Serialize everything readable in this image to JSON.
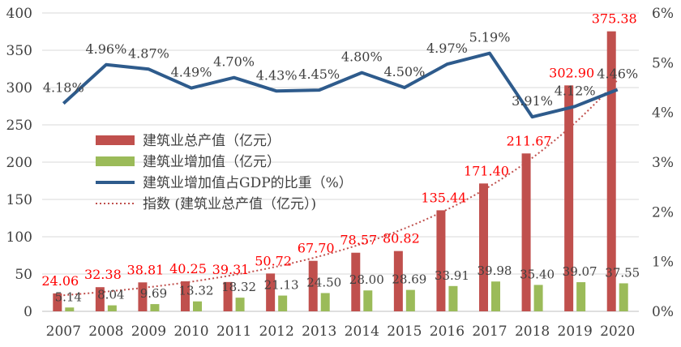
{
  "chart_data": {
    "type": "bar",
    "categories": [
      "2007",
      "2008",
      "2009",
      "2010",
      "2011",
      "2012",
      "2013",
      "2014",
      "2015",
      "2016",
      "2017",
      "2018",
      "2019",
      "2020"
    ],
    "y_left": {
      "ticks": [
        "0",
        "50",
        "100",
        "150",
        "200",
        "250",
        "300",
        "350",
        "400"
      ],
      "range": [
        0,
        400
      ]
    },
    "y_right": {
      "ticks": [
        "0%",
        "1%",
        "2%",
        "3%",
        "4%",
        "5%",
        "6%"
      ],
      "range": [
        0,
        6
      ]
    },
    "grid": true,
    "legend_position": "middle-left",
    "series": [
      {
        "name": "建筑业总产值（亿元）",
        "kind": "bar",
        "axis": "left",
        "color": "#C0504D",
        "values": [
          24.06,
          32.38,
          38.81,
          40.25,
          39.31,
          50.72,
          67.7,
          78.57,
          80.82,
          135.44,
          171.4,
          211.67,
          302.9,
          375.38
        ],
        "labels": [
          "24.06",
          "32.38",
          "38.81",
          "40.25",
          "39.31",
          "50.72",
          "67.70",
          "78.57",
          "80.82",
          "135.44",
          "171.40",
          "211.67",
          "302.90",
          "375.38"
        ],
        "label_color": "#FF0000"
      },
      {
        "name": "建筑业增加值（亿元）",
        "kind": "bar",
        "axis": "left",
        "color": "#9BBB59",
        "values": [
          5.14,
          8.04,
          9.69,
          13.32,
          18.32,
          21.13,
          24.5,
          28.0,
          28.69,
          33.91,
          39.98,
          35.4,
          39.07,
          37.55
        ],
        "labels": [
          "5.14",
          "8.04",
          "9.69",
          "13.32",
          "18.32",
          "21.13",
          "24.50",
          "28.00",
          "28.69",
          "33.91",
          "39.98",
          "35.40",
          "39.07",
          "37.55"
        ],
        "label_color": "#404040"
      },
      {
        "name": "建筑业增加值占GDP的比重（%）",
        "kind": "line",
        "axis": "right",
        "color": "#2E5B8C",
        "values": [
          4.18,
          4.96,
          4.87,
          4.49,
          4.7,
          4.43,
          4.45,
          4.8,
          4.5,
          4.97,
          5.19,
          3.91,
          4.12,
          4.46
        ],
        "labels": [
          "4.18%",
          "4.96%",
          "4.87%",
          "4.49%",
          "4.70%",
          "4.43%",
          "4.45%",
          "4.80%",
          "4.50%",
          "4.97%",
          "5.19%",
          "3.91%",
          "4.12%",
          "4.46%"
        ],
        "label_color": "#404040"
      },
      {
        "name": "指数 (建筑业总产值（亿元）)",
        "kind": "trendline-exponential",
        "axis": "left",
        "color": "#C0504D"
      }
    ]
  }
}
